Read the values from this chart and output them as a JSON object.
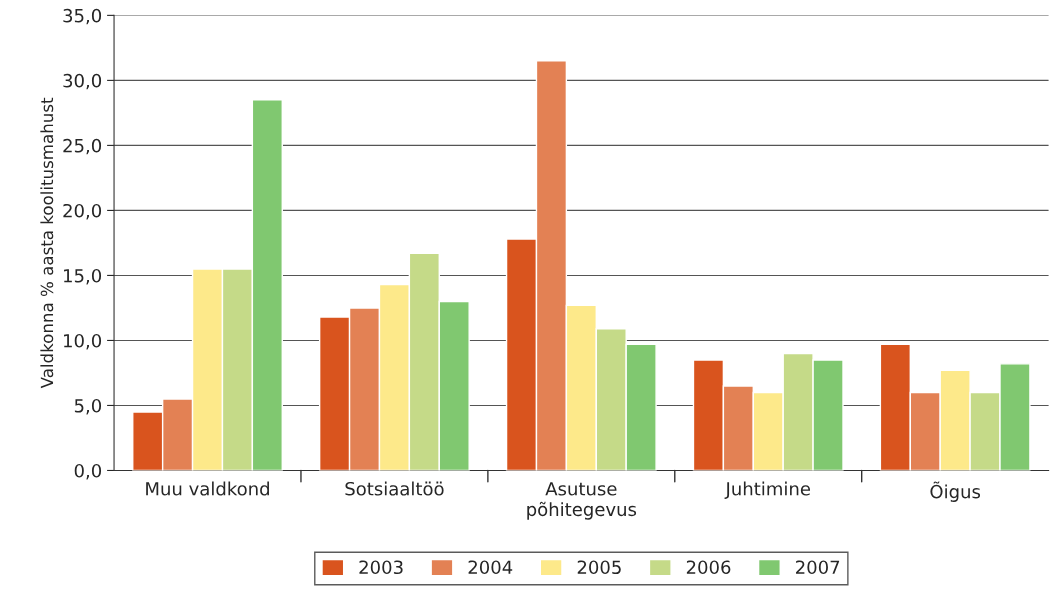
{
  "chart_data": {
    "type": "bar",
    "ylabel": "Valdkonna % aasta koolitusmahust",
    "categories": [
      "Muu valdkond",
      "Sotsiaaltöö",
      "Asutuse\npõhitegevus",
      "Juhtimine",
      "Õigus"
    ],
    "series": [
      {
        "name": "2003",
        "color": "#d9541e",
        "values": [
          4.5,
          11.8,
          17.8,
          8.5,
          9.7
        ]
      },
      {
        "name": "2004",
        "color": "#e38154",
        "values": [
          5.5,
          12.5,
          31.5,
          6.5,
          6.0
        ]
      },
      {
        "name": "2005",
        "color": "#fde98a",
        "values": [
          15.5,
          14.3,
          12.7,
          6.0,
          7.7
        ]
      },
      {
        "name": "2006",
        "color": "#c5da88",
        "values": [
          15.5,
          16.7,
          10.9,
          9.0,
          6.0
        ]
      },
      {
        "name": "2007",
        "color": "#80c870",
        "values": [
          28.5,
          13.0,
          9.7,
          8.5,
          8.2
        ]
      }
    ],
    "ylim": [
      0,
      35
    ],
    "yticks": [
      {
        "value": 0,
        "label": "0,0"
      },
      {
        "value": 5,
        "label": "5,0"
      },
      {
        "value": 10,
        "label": "10,0"
      },
      {
        "value": 15,
        "label": "15,0"
      },
      {
        "value": 20,
        "label": "20,0"
      },
      {
        "value": 25,
        "label": "25,0"
      },
      {
        "value": 30,
        "label": "30,0"
      },
      {
        "value": 35,
        "label": "35,0"
      }
    ],
    "grid": "y",
    "legend": "bottom"
  }
}
